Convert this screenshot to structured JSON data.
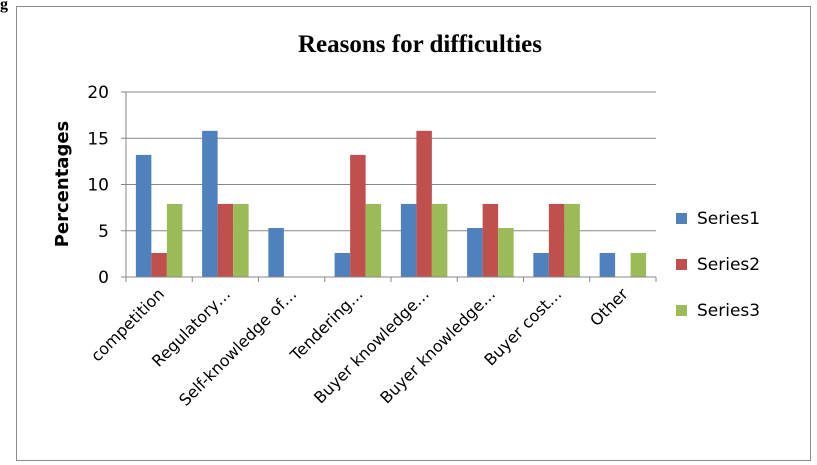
{
  "corner_text": "g",
  "chart_data": {
    "type": "bar",
    "title": "Reasons for difficulties",
    "ylabel": "Percentages",
    "xlabel": "",
    "ylim": [
      0,
      20
    ],
    "yticks": [
      0,
      5,
      10,
      15,
      20
    ],
    "grid": true,
    "legend_position": "right",
    "categories": [
      "competition",
      "Regulatory…",
      "Self-knowledge of…",
      "Tendering…",
      "Buyer knowledge…",
      "Buyer knowledge…",
      "Buyer cost…",
      "Other"
    ],
    "series": [
      {
        "name": "Series1",
        "color": "#4f81bd",
        "values": [
          13.2,
          15.8,
          5.3,
          2.6,
          7.9,
          5.3,
          2.6,
          2.6
        ]
      },
      {
        "name": "Series2",
        "color": "#c0504d",
        "values": [
          2.6,
          7.9,
          0,
          13.2,
          15.8,
          7.9,
          7.9,
          0
        ]
      },
      {
        "name": "Series3",
        "color": "#9bbb59",
        "values": [
          7.9,
          7.9,
          0,
          7.9,
          7.9,
          5.3,
          7.9,
          2.6
        ]
      }
    ]
  }
}
